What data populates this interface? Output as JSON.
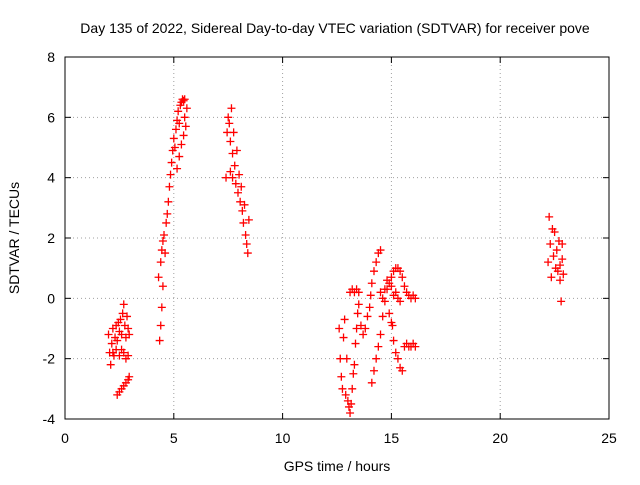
{
  "chart_data": {
    "type": "scatter",
    "title": "Day 135 of 2022, Sidereal Day-to-day VTEC variation (SDTVAR) for receiver pove",
    "xlabel": "GPS time / hours",
    "ylabel": "SDTVAR / TECUs",
    "xlim": [
      0,
      25
    ],
    "ylim": [
      -4,
      8
    ],
    "xticks": [
      "0",
      "5",
      "10",
      "15",
      "20",
      "25"
    ],
    "yticks": [
      "-4",
      "-2",
      "0",
      "2",
      "4",
      "6",
      "8"
    ],
    "grid": true,
    "marker": "+",
    "color": "#ff0000",
    "series": [
      {
        "points": [
          [
            2.0,
            -1.2
          ],
          [
            2.05,
            -1.8
          ],
          [
            2.1,
            -2.2
          ],
          [
            2.15,
            -1.5
          ],
          [
            2.2,
            -1.0
          ],
          [
            2.25,
            -1.9
          ],
          [
            2.3,
            -1.3
          ],
          [
            2.35,
            -0.9
          ],
          [
            2.4,
            -1.4
          ],
          [
            2.45,
            -0.8
          ],
          [
            2.5,
            -1.1
          ],
          [
            2.55,
            -0.7
          ],
          [
            2.6,
            -1.2
          ],
          [
            2.65,
            -0.5
          ],
          [
            2.7,
            -0.2
          ],
          [
            2.75,
            -0.9
          ],
          [
            2.8,
            -1.3
          ],
          [
            2.85,
            -0.6
          ],
          [
            2.9,
            -1.0
          ],
          [
            2.95,
            -1.2
          ],
          [
            2.2,
            -1.8
          ],
          [
            2.35,
            -1.7
          ],
          [
            2.5,
            -1.9
          ],
          [
            2.6,
            -1.7
          ],
          [
            2.7,
            -1.8
          ],
          [
            2.8,
            -2.0
          ],
          [
            2.9,
            -1.9
          ],
          [
            2.4,
            -3.2
          ],
          [
            2.5,
            -3.1
          ],
          [
            2.6,
            -3.0
          ],
          [
            2.7,
            -2.9
          ],
          [
            2.8,
            -2.8
          ],
          [
            2.9,
            -2.7
          ],
          [
            2.95,
            -2.6
          ],
          [
            4.3,
            0.7
          ],
          [
            4.35,
            -1.4
          ],
          [
            4.4,
            -0.9
          ],
          [
            4.45,
            -0.3
          ],
          [
            4.5,
            0.4
          ],
          [
            4.4,
            1.2
          ],
          [
            4.45,
            1.6
          ],
          [
            4.5,
            1.9
          ],
          [
            4.55,
            2.1
          ],
          [
            4.6,
            1.5
          ],
          [
            4.65,
            2.5
          ],
          [
            4.7,
            2.8
          ],
          [
            4.75,
            3.2
          ],
          [
            4.8,
            3.7
          ],
          [
            4.85,
            4.1
          ],
          [
            4.9,
            4.5
          ],
          [
            4.95,
            4.9
          ],
          [
            5.0,
            5.3
          ],
          [
            5.05,
            5.0
          ],
          [
            5.1,
            5.6
          ],
          [
            5.15,
            5.9
          ],
          [
            5.2,
            6.2
          ],
          [
            5.25,
            5.8
          ],
          [
            5.3,
            6.4
          ],
          [
            5.35,
            6.5
          ],
          [
            5.4,
            6.6
          ],
          [
            5.45,
            6.55
          ],
          [
            5.5,
            6.6
          ],
          [
            5.5,
            6.0
          ],
          [
            5.55,
            5.7
          ],
          [
            5.45,
            5.4
          ],
          [
            5.35,
            5.1
          ],
          [
            5.25,
            4.7
          ],
          [
            5.15,
            4.3
          ],
          [
            5.6,
            6.3
          ],
          [
            7.4,
            4.0
          ],
          [
            7.45,
            5.5
          ],
          [
            7.5,
            6.0
          ],
          [
            7.55,
            5.8
          ],
          [
            7.6,
            5.2
          ],
          [
            7.65,
            6.3
          ],
          [
            7.7,
            4.8
          ],
          [
            7.75,
            5.5
          ],
          [
            7.8,
            4.4
          ],
          [
            7.85,
            3.8
          ],
          [
            7.9,
            4.9
          ],
          [
            7.95,
            3.5
          ],
          [
            8.0,
            4.1
          ],
          [
            8.05,
            3.2
          ],
          [
            8.1,
            3.7
          ],
          [
            8.15,
            2.9
          ],
          [
            8.2,
            2.5
          ],
          [
            8.25,
            3.1
          ],
          [
            8.3,
            2.1
          ],
          [
            8.35,
            1.8
          ],
          [
            8.4,
            1.5
          ],
          [
            8.45,
            2.6
          ],
          [
            7.6,
            4.2
          ],
          [
            7.7,
            4.0
          ],
          [
            12.6,
            -1.0
          ],
          [
            12.65,
            -2.0
          ],
          [
            12.7,
            -2.6
          ],
          [
            12.75,
            -3.0
          ],
          [
            12.8,
            -1.3
          ],
          [
            12.85,
            -0.7
          ],
          [
            12.9,
            -3.2
          ],
          [
            12.95,
            -2.0
          ],
          [
            13.0,
            -3.4
          ],
          [
            13.05,
            -3.6
          ],
          [
            13.1,
            -3.8
          ],
          [
            13.15,
            -3.5
          ],
          [
            13.2,
            -3.0
          ],
          [
            13.25,
            -2.5
          ],
          [
            13.3,
            -2.2
          ],
          [
            13.35,
            -1.5
          ],
          [
            13.4,
            -1.0
          ],
          [
            13.45,
            -0.5
          ],
          [
            13.5,
            -0.2
          ],
          [
            13.1,
            0.2
          ],
          [
            13.2,
            0.3
          ],
          [
            13.3,
            0.2
          ],
          [
            13.4,
            0.3
          ],
          [
            13.5,
            0.2
          ],
          [
            13.6,
            -0.9
          ],
          [
            13.7,
            -1.2
          ],
          [
            13.8,
            -1.0
          ],
          [
            13.9,
            -0.6
          ],
          [
            14.0,
            -0.3
          ],
          [
            14.05,
            0.1
          ],
          [
            14.1,
            0.5
          ],
          [
            14.2,
            0.9
          ],
          [
            14.3,
            1.2
          ],
          [
            14.4,
            1.5
          ],
          [
            14.5,
            1.6
          ],
          [
            14.1,
            -2.8
          ],
          [
            14.2,
            -2.4
          ],
          [
            14.3,
            -2.0
          ],
          [
            14.4,
            -1.6
          ],
          [
            14.5,
            -1.2
          ],
          [
            14.6,
            -0.6
          ],
          [
            14.7,
            -0.1
          ],
          [
            14.8,
            0.3
          ],
          [
            14.9,
            0.5
          ],
          [
            15.0,
            0.4
          ],
          [
            15.05,
            -0.9
          ],
          [
            15.1,
            -1.4
          ],
          [
            15.2,
            -1.8
          ],
          [
            15.3,
            -2.0
          ],
          [
            15.4,
            -2.3
          ],
          [
            15.5,
            -2.4
          ],
          [
            15.6,
            -1.6
          ],
          [
            15.7,
            -1.5
          ],
          [
            15.8,
            -1.6
          ],
          [
            15.9,
            -1.6
          ],
          [
            16.0,
            -1.5
          ],
          [
            16.1,
            -1.6
          ],
          [
            15.0,
            0.7
          ],
          [
            15.1,
            0.9
          ],
          [
            15.2,
            1.0
          ],
          [
            15.3,
            1.0
          ],
          [
            15.4,
            0.9
          ],
          [
            15.5,
            0.7
          ],
          [
            15.6,
            0.4
          ],
          [
            15.7,
            0.2
          ],
          [
            15.8,
            0.1
          ],
          [
            15.9,
            0.0
          ],
          [
            16.0,
            0.1
          ],
          [
            16.1,
            0.0
          ],
          [
            14.5,
            0.2
          ],
          [
            14.6,
            0.0
          ],
          [
            14.7,
            0.3
          ],
          [
            14.8,
            0.6
          ],
          [
            14.9,
            -0.5
          ],
          [
            15.0,
            -0.8
          ],
          [
            15.1,
            0.1
          ],
          [
            15.2,
            0.2
          ],
          [
            15.3,
            0.0
          ],
          [
            15.4,
            -0.1
          ],
          [
            22.2,
            1.2
          ],
          [
            22.25,
            2.7
          ],
          [
            22.3,
            1.8
          ],
          [
            22.35,
            0.7
          ],
          [
            22.4,
            2.3
          ],
          [
            22.45,
            1.4
          ],
          [
            22.5,
            2.2
          ],
          [
            22.55,
            1.0
          ],
          [
            22.6,
            1.6
          ],
          [
            22.65,
            0.9
          ],
          [
            22.7,
            1.9
          ],
          [
            22.75,
            0.6
          ],
          [
            22.8,
            -0.1
          ],
          [
            22.85,
            1.3
          ],
          [
            22.9,
            0.8
          ],
          [
            22.75,
            1.1
          ],
          [
            22.85,
            1.8
          ]
        ]
      }
    ]
  }
}
